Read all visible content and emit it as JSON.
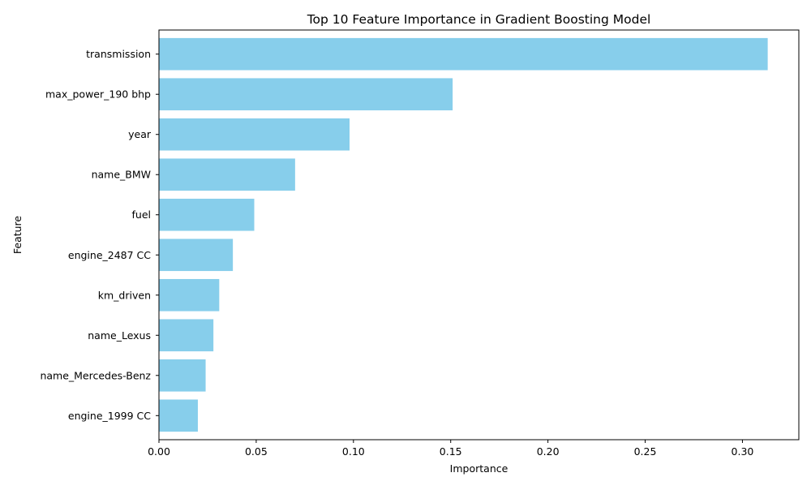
{
  "chart_data": {
    "type": "bar",
    "orientation": "horizontal",
    "title": "Top 10 Feature Importance in Gradient Boosting Model",
    "xlabel": "Importance",
    "ylabel": "Feature",
    "categories": [
      "transmission",
      "max_power_190 bhp",
      "year",
      "name_BMW",
      "fuel",
      "engine_2487 CC",
      "km_driven",
      "name_Lexus",
      "name_Mercedes-Benz",
      "engine_1999 CC"
    ],
    "values": [
      0.313,
      0.151,
      0.098,
      0.07,
      0.049,
      0.038,
      0.031,
      0.028,
      0.024,
      0.02
    ],
    "xlim": [
      0,
      0.329
    ],
    "x_ticks": [
      0.0,
      0.05,
      0.1,
      0.15,
      0.2,
      0.25,
      0.3
    ],
    "x_tick_labels": [
      "0.00",
      "0.05",
      "0.10",
      "0.15",
      "0.20",
      "0.25",
      "0.30"
    ],
    "grid": false,
    "bar_color": "#87ceeb"
  }
}
